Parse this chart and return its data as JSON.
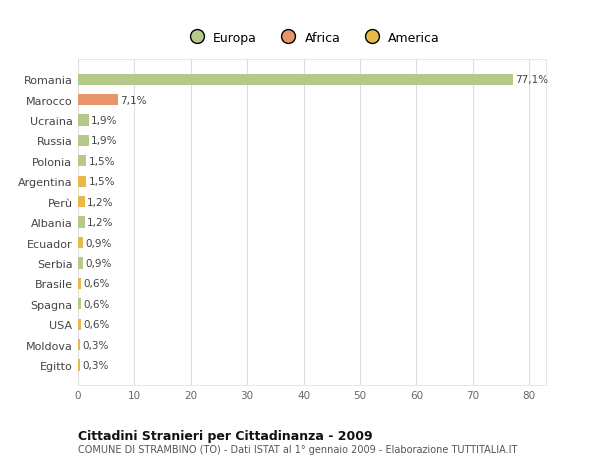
{
  "categories": [
    "Egitto",
    "Moldova",
    "USA",
    "Spagna",
    "Brasile",
    "Serbia",
    "Ecuador",
    "Albania",
    "Perù",
    "Argentina",
    "Polonia",
    "Russia",
    "Ucraina",
    "Marocco",
    "Romania"
  ],
  "values": [
    0.3,
    0.3,
    0.6,
    0.6,
    0.6,
    0.9,
    0.9,
    1.2,
    1.2,
    1.5,
    1.5,
    1.9,
    1.9,
    7.1,
    77.1
  ],
  "labels": [
    "0,3%",
    "0,3%",
    "0,6%",
    "0,6%",
    "0,6%",
    "0,9%",
    "0,9%",
    "1,2%",
    "1,2%",
    "1,5%",
    "1,5%",
    "1,9%",
    "1,9%",
    "7,1%",
    "77,1%"
  ],
  "colors": [
    "#e8b84b",
    "#e8b84b",
    "#e8b84b",
    "#b5c98a",
    "#e8b84b",
    "#b5c98a",
    "#e8b84b",
    "#b5c98a",
    "#e8b84b",
    "#e8b84b",
    "#b5c98a",
    "#b5c98a",
    "#b5c98a",
    "#e8956a",
    "#b5c98a"
  ],
  "legend_labels": [
    "Europa",
    "Africa",
    "America"
  ],
  "legend_colors": [
    "#b5c98a",
    "#e8956a",
    "#e8b84b"
  ],
  "xlim": [
    0,
    83
  ],
  "xticks": [
    0,
    10,
    20,
    30,
    40,
    50,
    60,
    70,
    80
  ],
  "title": "Cittadini Stranieri per Cittadinanza - 2009",
  "subtitle": "COMUNE DI STRAMBINO (TO) - Dati ISTAT al 1° gennaio 2009 - Elaborazione TUTTITALIA.IT",
  "plot_bg": "#ffffff",
  "fig_bg": "#ffffff",
  "grid_color": "#dddddd",
  "bar_height": 0.55
}
